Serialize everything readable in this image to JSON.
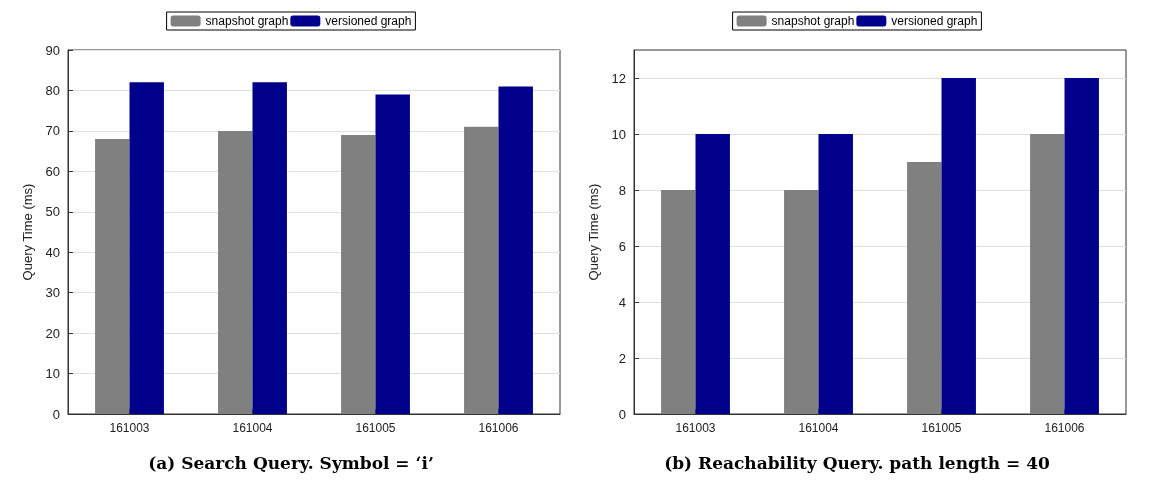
{
  "chart_data": [
    {
      "type": "bar",
      "title": "(a) Search Query. Symbol = ‘i’",
      "ylabel": "Query Time (ms)",
      "categories": [
        "161003",
        "161004",
        "161005",
        "161006"
      ],
      "series": [
        {
          "name": "snapshot graph",
          "color": "#808080",
          "values": [
            68,
            70,
            69,
            71
          ]
        },
        {
          "name": "versioned graph",
          "color": "#00008b",
          "values": [
            82,
            82,
            79,
            81
          ]
        }
      ],
      "ylim": [
        0,
        90
      ],
      "yticks": [
        0,
        10,
        20,
        30,
        40,
        50,
        60,
        70,
        80,
        90
      ],
      "grid": "y",
      "legend": "top"
    },
    {
      "type": "bar",
      "title": "(b) Reachability Query. path length = 40",
      "ylabel": "Query Time (ms)",
      "categories": [
        "161003",
        "161004",
        "161005",
        "161006"
      ],
      "series": [
        {
          "name": "snapshot graph",
          "color": "#808080",
          "values": [
            8,
            8,
            9,
            10
          ]
        },
        {
          "name": "versioned graph",
          "color": "#00008b",
          "values": [
            10,
            10,
            12,
            12
          ]
        }
      ],
      "ylim": [
        0,
        13
      ],
      "yticks": [
        0,
        2,
        4,
        6,
        8,
        10,
        12
      ],
      "grid": "y",
      "legend": "top"
    }
  ]
}
